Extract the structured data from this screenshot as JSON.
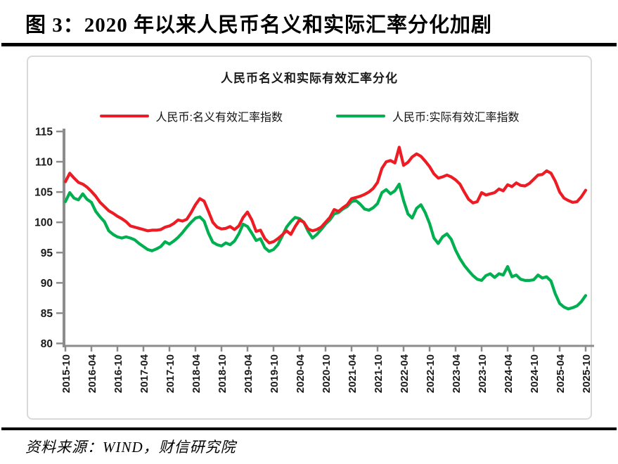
{
  "page": {
    "title": "图 3：2020 年以来人民币名义和实际汇率分化加剧",
    "source_note": "资料来源：WIND，财信研究院"
  },
  "chart_data": {
    "type": "line",
    "title": "人民币名义和实际有效汇率分化",
    "frequency": "monthly",
    "x_start": "2015-10",
    "x_end": "2025-10",
    "x_tick_labels": [
      "2015-10",
      "2016-04",
      "2016-10",
      "2017-04",
      "2017-10",
      "2018-04",
      "2018-10",
      "2019-04",
      "2019-10",
      "2020-04",
      "2020-10",
      "2021-04",
      "2021-10",
      "2022-04",
      "2022-10",
      "2023-04",
      "2023-10",
      "2024-04",
      "2024-10",
      "2025-04",
      "2025-10"
    ],
    "ylim": [
      80,
      115
    ],
    "y_ticks": [
      80,
      85,
      90,
      95,
      100,
      105,
      110,
      115
    ],
    "grid": false,
    "legend_position": "top",
    "axis_color": "#8c8c8c",
    "tick_label_color": "#1a1a1a",
    "series": [
      {
        "name": "人民币:名义有效汇率指数",
        "color": "#ed1c24",
        "values": [
          106.7,
          108.1,
          107.3,
          106.6,
          106.3,
          105.8,
          105.1,
          104.3,
          103.3,
          102.6,
          101.9,
          101.5,
          101.0,
          100.6,
          100.1,
          99.4,
          99.2,
          99.0,
          98.8,
          98.6,
          98.7,
          98.7,
          98.8,
          99.2,
          99.4,
          99.8,
          100.4,
          100.2,
          100.5,
          101.6,
          102.9,
          103.9,
          103.5,
          101.8,
          100.0,
          99.2,
          98.9,
          99.0,
          99.3,
          98.8,
          99.4,
          100.8,
          101.7,
          100.4,
          98.5,
          98.7,
          97.3,
          96.6,
          96.8,
          97.3,
          97.9,
          98.6,
          98.0,
          99.3,
          100.4,
          100.0,
          98.9,
          98.6,
          98.8,
          99.2,
          100.0,
          100.8,
          102.1,
          101.8,
          102.4,
          102.9,
          103.9,
          104.1,
          104.3,
          104.6,
          105.0,
          105.6,
          106.6,
          108.9,
          110.0,
          110.2,
          109.8,
          112.4,
          109.4,
          109.9,
          110.8,
          111.3,
          110.9,
          110.1,
          109.2,
          108.0,
          107.3,
          107.5,
          107.8,
          107.5,
          107.0,
          106.3,
          105.0,
          103.8,
          103.2,
          103.4,
          104.9,
          104.5,
          104.7,
          104.9,
          105.5,
          105.2,
          106.2,
          105.9,
          106.5,
          106.1,
          106.0,
          106.4,
          107.1,
          107.8,
          107.9,
          108.5,
          108.1,
          106.8,
          105.0,
          104.0,
          103.6,
          103.3,
          103.4,
          104.2,
          105.3
        ]
      },
      {
        "name": "人民币:实际有效汇率指数",
        "color": "#00b050",
        "values": [
          103.4,
          104.9,
          104.0,
          103.7,
          104.7,
          103.8,
          103.3,
          101.8,
          100.9,
          100.1,
          98.6,
          98.0,
          97.6,
          97.4,
          97.6,
          97.4,
          97.1,
          96.5,
          96.0,
          95.5,
          95.3,
          95.6,
          96.0,
          96.8,
          96.4,
          96.9,
          97.5,
          98.3,
          99.2,
          100.0,
          100.7,
          100.9,
          100.2,
          98.2,
          96.7,
          96.3,
          96.1,
          96.6,
          96.3,
          96.9,
          98.1,
          99.7,
          99.3,
          98.2,
          97.0,
          97.3,
          95.8,
          95.2,
          95.5,
          96.3,
          97.7,
          99.2,
          100.1,
          100.8,
          100.6,
          100.0,
          98.5,
          97.4,
          98.0,
          98.8,
          99.7,
          100.4,
          101.4,
          101.6,
          102.2,
          102.6,
          103.4,
          103.6,
          103.0,
          102.2,
          102.0,
          102.4,
          103.1,
          104.9,
          105.4,
          104.7,
          105.2,
          106.3,
          103.6,
          101.4,
          100.7,
          102.3,
          102.9,
          101.6,
          99.8,
          97.4,
          96.5,
          97.6,
          98.1,
          97.2,
          95.4,
          94.0,
          92.9,
          92.0,
          91.2,
          90.6,
          90.4,
          91.2,
          91.5,
          90.9,
          91.5,
          91.3,
          92.7,
          91.0,
          91.3,
          90.6,
          90.4,
          90.4,
          90.5,
          91.3,
          90.8,
          91.0,
          90.3,
          88.2,
          86.6,
          86.0,
          85.7,
          85.9,
          86.2,
          86.9,
          87.9
        ]
      }
    ]
  }
}
